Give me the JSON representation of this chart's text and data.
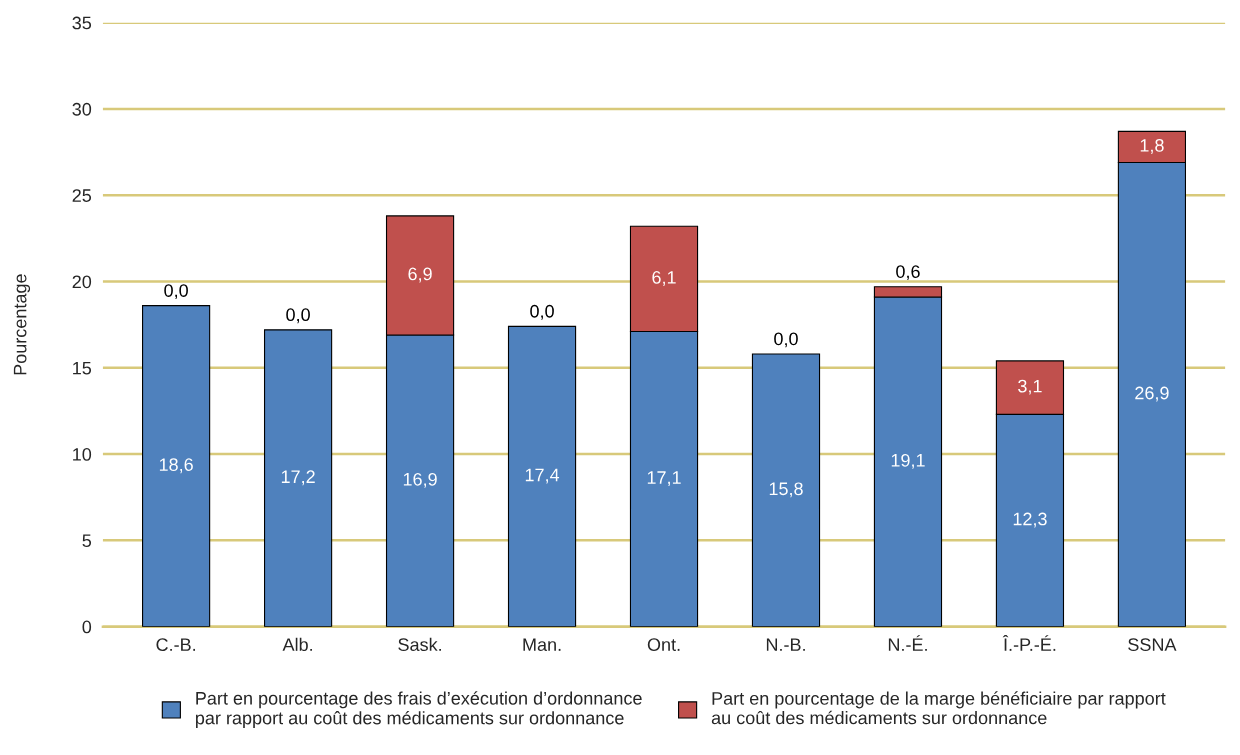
{
  "chart_data": {
    "type": "bar",
    "stacked": true,
    "ylabel": "Pourcentage",
    "categories": [
      "C.-B.",
      "Alb.",
      "Sask.",
      "Man.",
      "Ont.",
      "N.-B.",
      "N.-É.",
      "Î.-P.-É.",
      "SSNA"
    ],
    "series": [
      {
        "name": "Part en pourcentage des frais d’exécution d’ordonnance\npar rapport au coût des médicaments sur ordonnance",
        "color": "#4f81bd",
        "values": [
          18.6,
          17.2,
          16.9,
          17.4,
          17.1,
          15.8,
          19.1,
          12.3,
          26.9
        ],
        "value_labels": [
          "18,6",
          "17,2",
          "16,9",
          "17,4",
          "17,1",
          "15,8",
          "19,1",
          "12,3",
          "26,9"
        ]
      },
      {
        "name": "Part en pourcentage de la marge bénéficiaire par rapport\nau coût des médicaments sur ordonnance",
        "color": "#c0504d",
        "values": [
          0.0,
          0.0,
          6.9,
          0.0,
          6.1,
          0.0,
          0.6,
          3.1,
          1.8
        ],
        "value_labels": [
          "0,0",
          "0,0",
          "6,9",
          "0,0",
          "6,1",
          "0,0",
          "0,6",
          "3,1",
          "1,8"
        ]
      }
    ],
    "ylim": [
      0,
      35
    ],
    "yticks": [
      0,
      5,
      10,
      15,
      20,
      25,
      30,
      35
    ],
    "grid": "y",
    "legend": "bottom"
  }
}
